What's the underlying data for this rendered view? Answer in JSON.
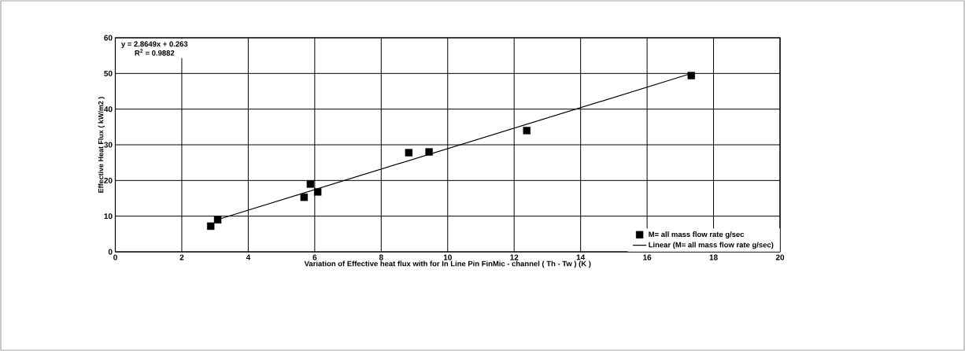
{
  "chart_data": {
    "type": "scatter",
    "xlabel": "Variation of Effective heat flux with  for In Line Pin FinMic - channel ( Th - Tw ) (K )",
    "ylabel": "Effective Heat Flux ( kW/m2 )",
    "annotations": [
      "y = 2.8649x + 0.263",
      "R$^{2}$ = 0.9882"
    ],
    "series": [
      {
        "name": "M= all mass flow rate g/sec",
        "color": "#000000",
        "marker": "square",
        "x": [
          2.87,
          3.08,
          5.68,
          5.87,
          6.09,
          8.83,
          9.44,
          12.38,
          17.33
        ],
        "values": [
          7.2,
          9.0,
          15.3,
          19.0,
          16.8,
          27.8,
          28.0,
          34.0,
          49.4
        ]
      },
      {
        "name": "Linear (M= all mass flow rate g/sec)",
        "type": "line",
        "color": "#000000",
        "marker": "none",
        "line_style": "solid",
        "x": [
          3.1,
          17.3
        ],
        "values": [
          9.1,
          49.9
        ]
      }
    ],
    "xlim": [
      0,
      20
    ],
    "ylim": [
      0,
      60
    ],
    "xticks": [
      0,
      2,
      4,
      6,
      8,
      10,
      12,
      14,
      16,
      18,
      20
    ],
    "yticks": [
      0,
      10,
      20,
      30,
      40,
      50,
      60
    ],
    "grid": true,
    "legend": "bottom right"
  }
}
